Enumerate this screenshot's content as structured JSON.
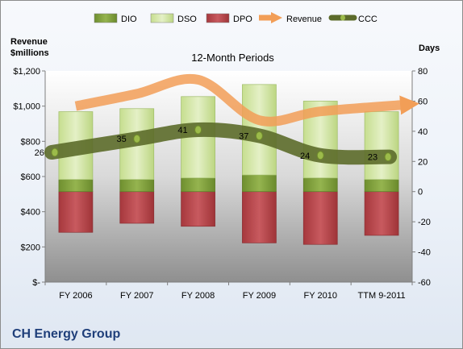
{
  "chart_data": {
    "type": "bar",
    "title": "12-Month Periods",
    "company": "CH Energy Group",
    "y_left_label": [
      "Revenue",
      "$millions"
    ],
    "y_right_label": "Days",
    "categories": [
      "FY 2006",
      "FY 2007",
      "FY 2008",
      "FY 2009",
      "FY 2010",
      "TTM 9-2011"
    ],
    "y_left": {
      "min": 0,
      "max": 1200,
      "step": 200,
      "tick_labels": [
        "$-",
        "$200",
        "$400",
        "$600",
        "$800",
        "$1,000",
        "$1,200"
      ]
    },
    "y_right": {
      "min": -60,
      "max": 80,
      "step": 20,
      "tick_labels": [
        "-60",
        "-40",
        "-20",
        "0",
        "20",
        "40",
        "60",
        "80"
      ]
    },
    "stacked_days": {
      "DPO": [
        -27,
        -21,
        -23,
        -34,
        -35,
        -29
      ],
      "DIO": [
        0,
        0,
        0,
        0,
        0,
        0
      ],
      "DIO_top": [
        8,
        8,
        9,
        11,
        9,
        8
      ],
      "DSO_top": [
        53,
        55,
        63,
        71,
        60,
        53
      ]
    },
    "series": [
      {
        "name": "DIO",
        "values": [
          8,
          8,
          9,
          11,
          9,
          8
        ],
        "color": "#7e9e3c"
      },
      {
        "name": "DSO",
        "values": [
          45,
          47,
          54,
          60,
          51,
          45
        ],
        "color": "#cfe3a1"
      },
      {
        "name": "DPO",
        "values": [
          27,
          21,
          23,
          34,
          35,
          29
        ],
        "color": "#b8484d"
      },
      {
        "name": "Revenue",
        "values": [
          1000,
          1070,
          1150,
          920,
          970,
          1010
        ],
        "color": "#f29e57",
        "axis": "left"
      },
      {
        "name": "CCC",
        "values": [
          26,
          35,
          41,
          37,
          24,
          23
        ],
        "color": "#5c6b2a",
        "axis": "right"
      }
    ],
    "ccc_labels": [
      "26",
      "35",
      "41",
      "37",
      "24",
      "23"
    ],
    "legend": [
      "DIO",
      "DSO",
      "DPO",
      "Revenue",
      "CCC"
    ],
    "legend_position": "top",
    "plot_background": "gradient grey",
    "grid": false
  }
}
